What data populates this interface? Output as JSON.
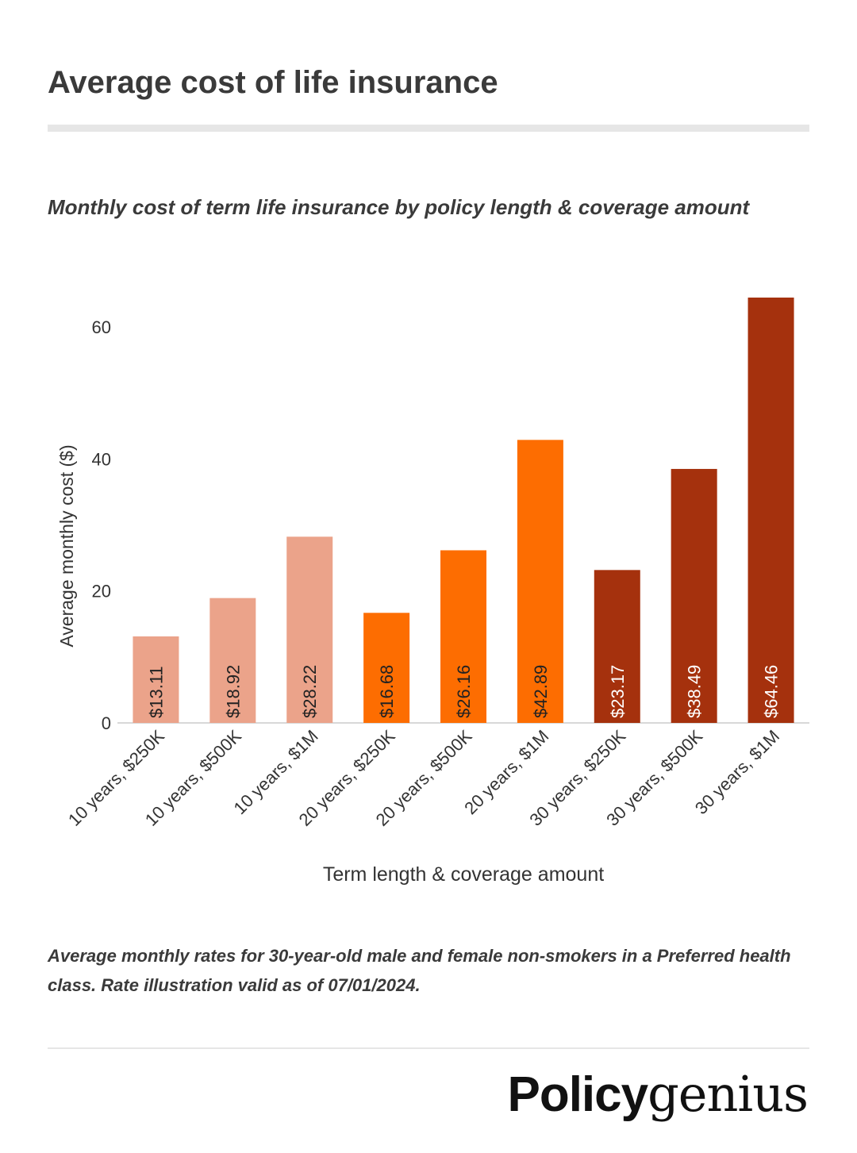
{
  "header": {
    "title": "Average cost of life insurance",
    "subtitle": "Monthly cost of term life insurance by policy length & coverage amount"
  },
  "footnote": "Average monthly rates for 30-year-old male and female non-smokers in a Preferred health class. Rate illustration valid as of 07/01/2024.",
  "logo": {
    "bold_part": "Policy",
    "light_part": "genius"
  },
  "colors": {
    "10_years": "#eba38a",
    "20_years": "#fd6d01",
    "30_years": "#a5310d",
    "axis_text": "#333333"
  },
  "chart_data": {
    "type": "bar",
    "title": "Monthly cost of term life insurance by policy length & coverage amount",
    "xlabel": "Term length & coverage amount",
    "ylabel": "Average monthly cost ($)",
    "ylim": [
      0,
      64.46
    ],
    "yticks": [
      0,
      20,
      40,
      60
    ],
    "grid": false,
    "categories": [
      "10 years, $250K",
      "10 years, $500K",
      "10 years, $1M",
      "20 years, $250K",
      "20 years, $500K",
      "20 years, $1M",
      "30 years, $250K",
      "30 years, $500K",
      "30 years, $1M"
    ],
    "values": [
      13.11,
      18.92,
      28.22,
      16.68,
      26.16,
      42.89,
      23.17,
      38.49,
      64.46
    ],
    "data_labels": [
      "$13.11",
      "$18.92",
      "$28.22",
      "$16.68",
      "$26.16",
      "$42.89",
      "$23.17",
      "$38.49",
      "$64.46"
    ],
    "bar_colors": [
      "#eba38a",
      "#eba38a",
      "#eba38a",
      "#fd6d01",
      "#fd6d01",
      "#fd6d01",
      "#a5310d",
      "#a5310d",
      "#a5310d"
    ],
    "label_colors": [
      "#222222",
      "#222222",
      "#222222",
      "#222222",
      "#222222",
      "#222222",
      "#ffffff",
      "#ffffff",
      "#ffffff"
    ]
  }
}
